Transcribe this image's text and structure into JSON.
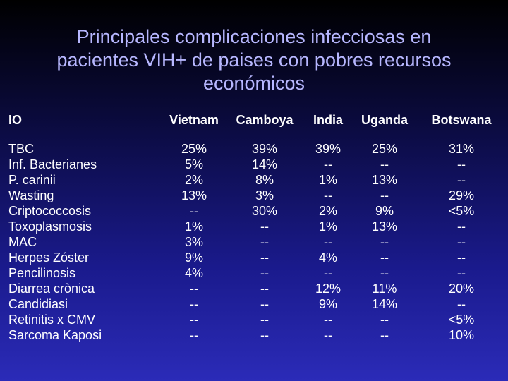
{
  "title": "Principales complicaciones infecciosas en\npacientes VIH+ de paises con pobres recursos\neconómicos",
  "table": {
    "headers": [
      "IO",
      "Vietnam",
      "Camboya",
      "India",
      "Uganda",
      "Botswana"
    ],
    "rows": [
      [
        "TBC",
        "25%",
        "39%",
        "39%",
        "25%",
        "31%"
      ],
      [
        "Inf. Bacterianes",
        "5%",
        "14%",
        "--",
        "--",
        "--"
      ],
      [
        "P. carinii",
        "2%",
        "8%",
        "1%",
        "13%",
        "--"
      ],
      [
        "Wasting",
        "13%",
        "3%",
        "--",
        "--",
        "29%"
      ],
      [
        "Criptococcosis",
        "--",
        "30%",
        "2%",
        "9%",
        "<5%"
      ],
      [
        "Toxoplasmosis",
        "1%",
        "--",
        "1%",
        "13%",
        "--"
      ],
      [
        "MAC",
        "3%",
        "--",
        "--",
        "--",
        "--"
      ],
      [
        "Herpes Zóster",
        "9%",
        "--",
        "4%",
        "--",
        "--"
      ],
      [
        "Pencilinosis",
        "4%",
        "--",
        "--",
        "--",
        "--"
      ],
      [
        "Diarrea crònica",
        "--",
        "--",
        "12%",
        "11%",
        "20%"
      ],
      [
        "Candidiasi",
        "--",
        "--",
        "9%",
        "14%",
        "--"
      ],
      [
        "Retinitis x CMV",
        "--",
        "--",
        "--",
        "--",
        "<5%"
      ],
      [
        "Sarcoma Kaposi",
        "--",
        "--",
        "--",
        "--",
        "10%"
      ]
    ]
  }
}
